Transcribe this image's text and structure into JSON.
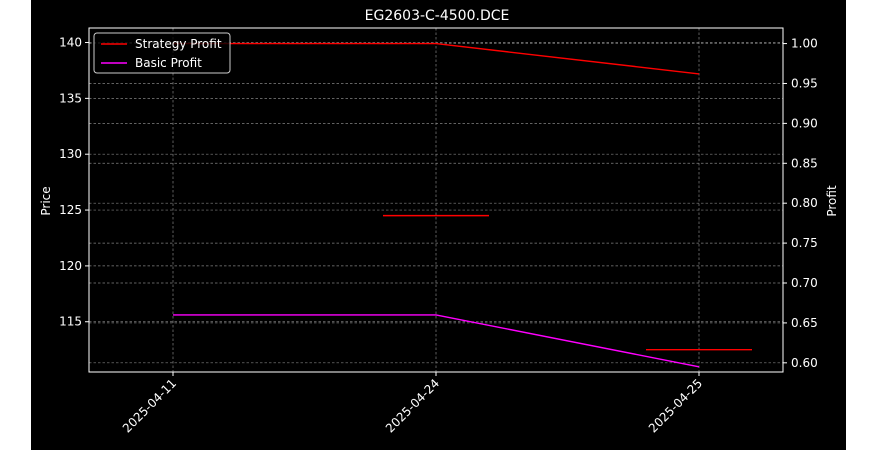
{
  "chart_data": {
    "type": "line",
    "title": "EG2603-C-4500.DCE",
    "x": [
      "2025-04-11",
      "2025-04-24",
      "2025-04-25"
    ],
    "ylabel": "Price",
    "y2label": "Profit",
    "ylim": [
      110.5,
      141.3
    ],
    "y2lim": [
      0.5885,
      1.0195
    ],
    "yticks": [
      115,
      120,
      125,
      130,
      135,
      140
    ],
    "y2ticks": [
      0.6,
      0.65,
      0.7,
      0.75,
      0.8,
      0.85,
      0.9,
      0.95,
      1.0
    ],
    "grid": true,
    "legend_position": "top-left",
    "series": [
      {
        "name": "Strategy Profit",
        "axis": "profit",
        "color": "#ff0000",
        "values": [
          1.0,
          1.0,
          0.962
        ]
      },
      {
        "name": "Basic Profit",
        "axis": "profit",
        "color": "#ff00ff",
        "values": [
          0.66,
          0.66,
          0.595
        ]
      }
    ],
    "price_markers": [
      {
        "at": "2025-04-24",
        "value": 124.5,
        "color": "#ff0000"
      },
      {
        "at": "2025-04-25",
        "value": 112.5,
        "color": "#ff0000"
      }
    ]
  }
}
